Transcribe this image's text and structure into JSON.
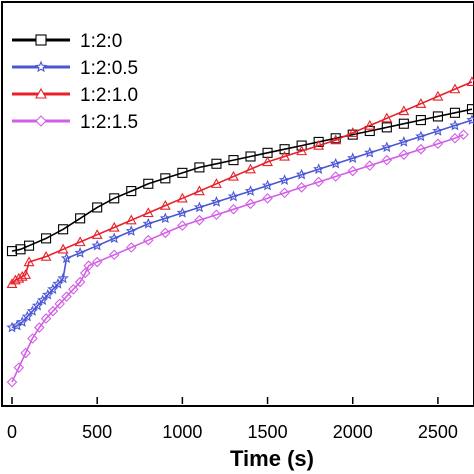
{
  "chart_data": {
    "type": "scatter",
    "title": "",
    "xlabel": "Time (s)",
    "ylabel": "",
    "xlim": [
      0,
      2700
    ],
    "ylim": [
      0,
      1
    ],
    "x_ticks": [
      0,
      500,
      1000,
      1500,
      2000,
      2500
    ],
    "x_tick_labels": [
      "0",
      "500",
      "1000",
      "1500",
      "2000",
      "2500"
    ],
    "grid": false,
    "legend_position": "top-left",
    "series": [
      {
        "name": "1:2:0",
        "color": "#000000",
        "marker": "square",
        "x": [
          0,
          50,
          100,
          200,
          300,
          400,
          500,
          600,
          700,
          800,
          900,
          1000,
          1100,
          1200,
          1300,
          1400,
          1500,
          1600,
          1700,
          1800,
          1900,
          2000,
          2100,
          2200,
          2300,
          2400,
          2500,
          2600,
          2700
        ],
        "y": [
          0.42,
          0.425,
          0.435,
          0.455,
          0.48,
          0.51,
          0.54,
          0.565,
          0.585,
          0.605,
          0.62,
          0.635,
          0.65,
          0.66,
          0.67,
          0.68,
          0.69,
          0.7,
          0.71,
          0.72,
          0.73,
          0.74,
          0.75,
          0.76,
          0.77,
          0.78,
          0.79,
          0.8,
          0.81
        ]
      },
      {
        "name": "1:2:0.5",
        "color": "#4a56d6",
        "marker": "star",
        "x": [
          0,
          30,
          60,
          90,
          120,
          150,
          180,
          210,
          240,
          270,
          300,
          320,
          400,
          500,
          600,
          700,
          800,
          900,
          1000,
          1100,
          1200,
          1300,
          1400,
          1500,
          1600,
          1700,
          1800,
          1900,
          2000,
          2100,
          2200,
          2300,
          2400,
          2500,
          2600,
          2700
        ],
        "y": [
          0.21,
          0.215,
          0.225,
          0.24,
          0.255,
          0.27,
          0.285,
          0.3,
          0.315,
          0.33,
          0.345,
          0.4,
          0.415,
          0.435,
          0.455,
          0.475,
          0.495,
          0.51,
          0.525,
          0.54,
          0.555,
          0.57,
          0.585,
          0.6,
          0.615,
          0.63,
          0.645,
          0.66,
          0.675,
          0.69,
          0.705,
          0.72,
          0.735,
          0.75,
          0.765,
          0.78
        ]
      },
      {
        "name": "1:2:1.0",
        "color": "#e8202a",
        "marker": "triangle",
        "x": [
          0,
          20,
          40,
          60,
          80,
          100,
          200,
          300,
          400,
          500,
          600,
          700,
          800,
          900,
          1000,
          1100,
          1200,
          1300,
          1400,
          1500,
          1600,
          1700,
          1800,
          1900,
          2000,
          2100,
          2200,
          2300,
          2400,
          2500,
          2600,
          2700
        ],
        "y": [
          0.33,
          0.34,
          0.345,
          0.35,
          0.355,
          0.39,
          0.405,
          0.425,
          0.445,
          0.465,
          0.485,
          0.505,
          0.525,
          0.545,
          0.565,
          0.585,
          0.605,
          0.625,
          0.645,
          0.665,
          0.68,
          0.695,
          0.71,
          0.725,
          0.745,
          0.765,
          0.785,
          0.805,
          0.825,
          0.845,
          0.865,
          0.885
        ]
      },
      {
        "name": "1:2:1.5",
        "color": "#d25ee6",
        "marker": "diamond",
        "x": [
          0,
          40,
          80,
          120,
          160,
          200,
          240,
          280,
          320,
          360,
          400,
          430,
          450,
          500,
          600,
          700,
          800,
          900,
          1000,
          1100,
          1200,
          1300,
          1400,
          1500,
          1600,
          1700,
          1800,
          1900,
          2000,
          2100,
          2200,
          2300,
          2400,
          2500,
          2600,
          2650
        ],
        "y": [
          0.06,
          0.1,
          0.14,
          0.18,
          0.21,
          0.235,
          0.255,
          0.275,
          0.295,
          0.315,
          0.335,
          0.36,
          0.38,
          0.39,
          0.41,
          0.43,
          0.45,
          0.47,
          0.49,
          0.505,
          0.52,
          0.535,
          0.55,
          0.565,
          0.58,
          0.595,
          0.61,
          0.625,
          0.64,
          0.655,
          0.67,
          0.685,
          0.7,
          0.715,
          0.73,
          0.74
        ]
      }
    ]
  }
}
